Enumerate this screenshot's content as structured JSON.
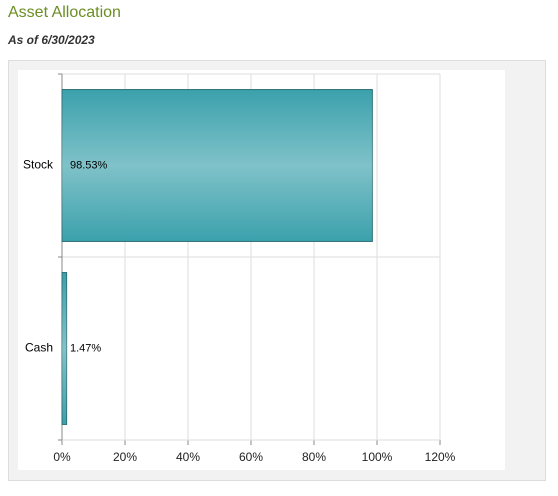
{
  "chart_data": {
    "type": "hbar",
    "title": "Asset Allocation",
    "subtitle": "As of 6/30/2023",
    "categories": [
      "Stock",
      "Cash"
    ],
    "values": [
      98.53,
      1.47
    ],
    "value_labels": [
      "98.53%",
      "1.47%"
    ],
    "color": "#3ba1ac",
    "xlim": [
      0,
      120
    ],
    "xticks": [
      {
        "value": 0,
        "label": "0%"
      },
      {
        "value": 20,
        "label": "20%"
      },
      {
        "value": 40,
        "label": "40%"
      },
      {
        "value": 60,
        "label": "60%"
      },
      {
        "value": 80,
        "label": "80%"
      },
      {
        "value": 100,
        "label": "100%"
      },
      {
        "value": 120,
        "label": "120%"
      }
    ],
    "grid": true
  }
}
